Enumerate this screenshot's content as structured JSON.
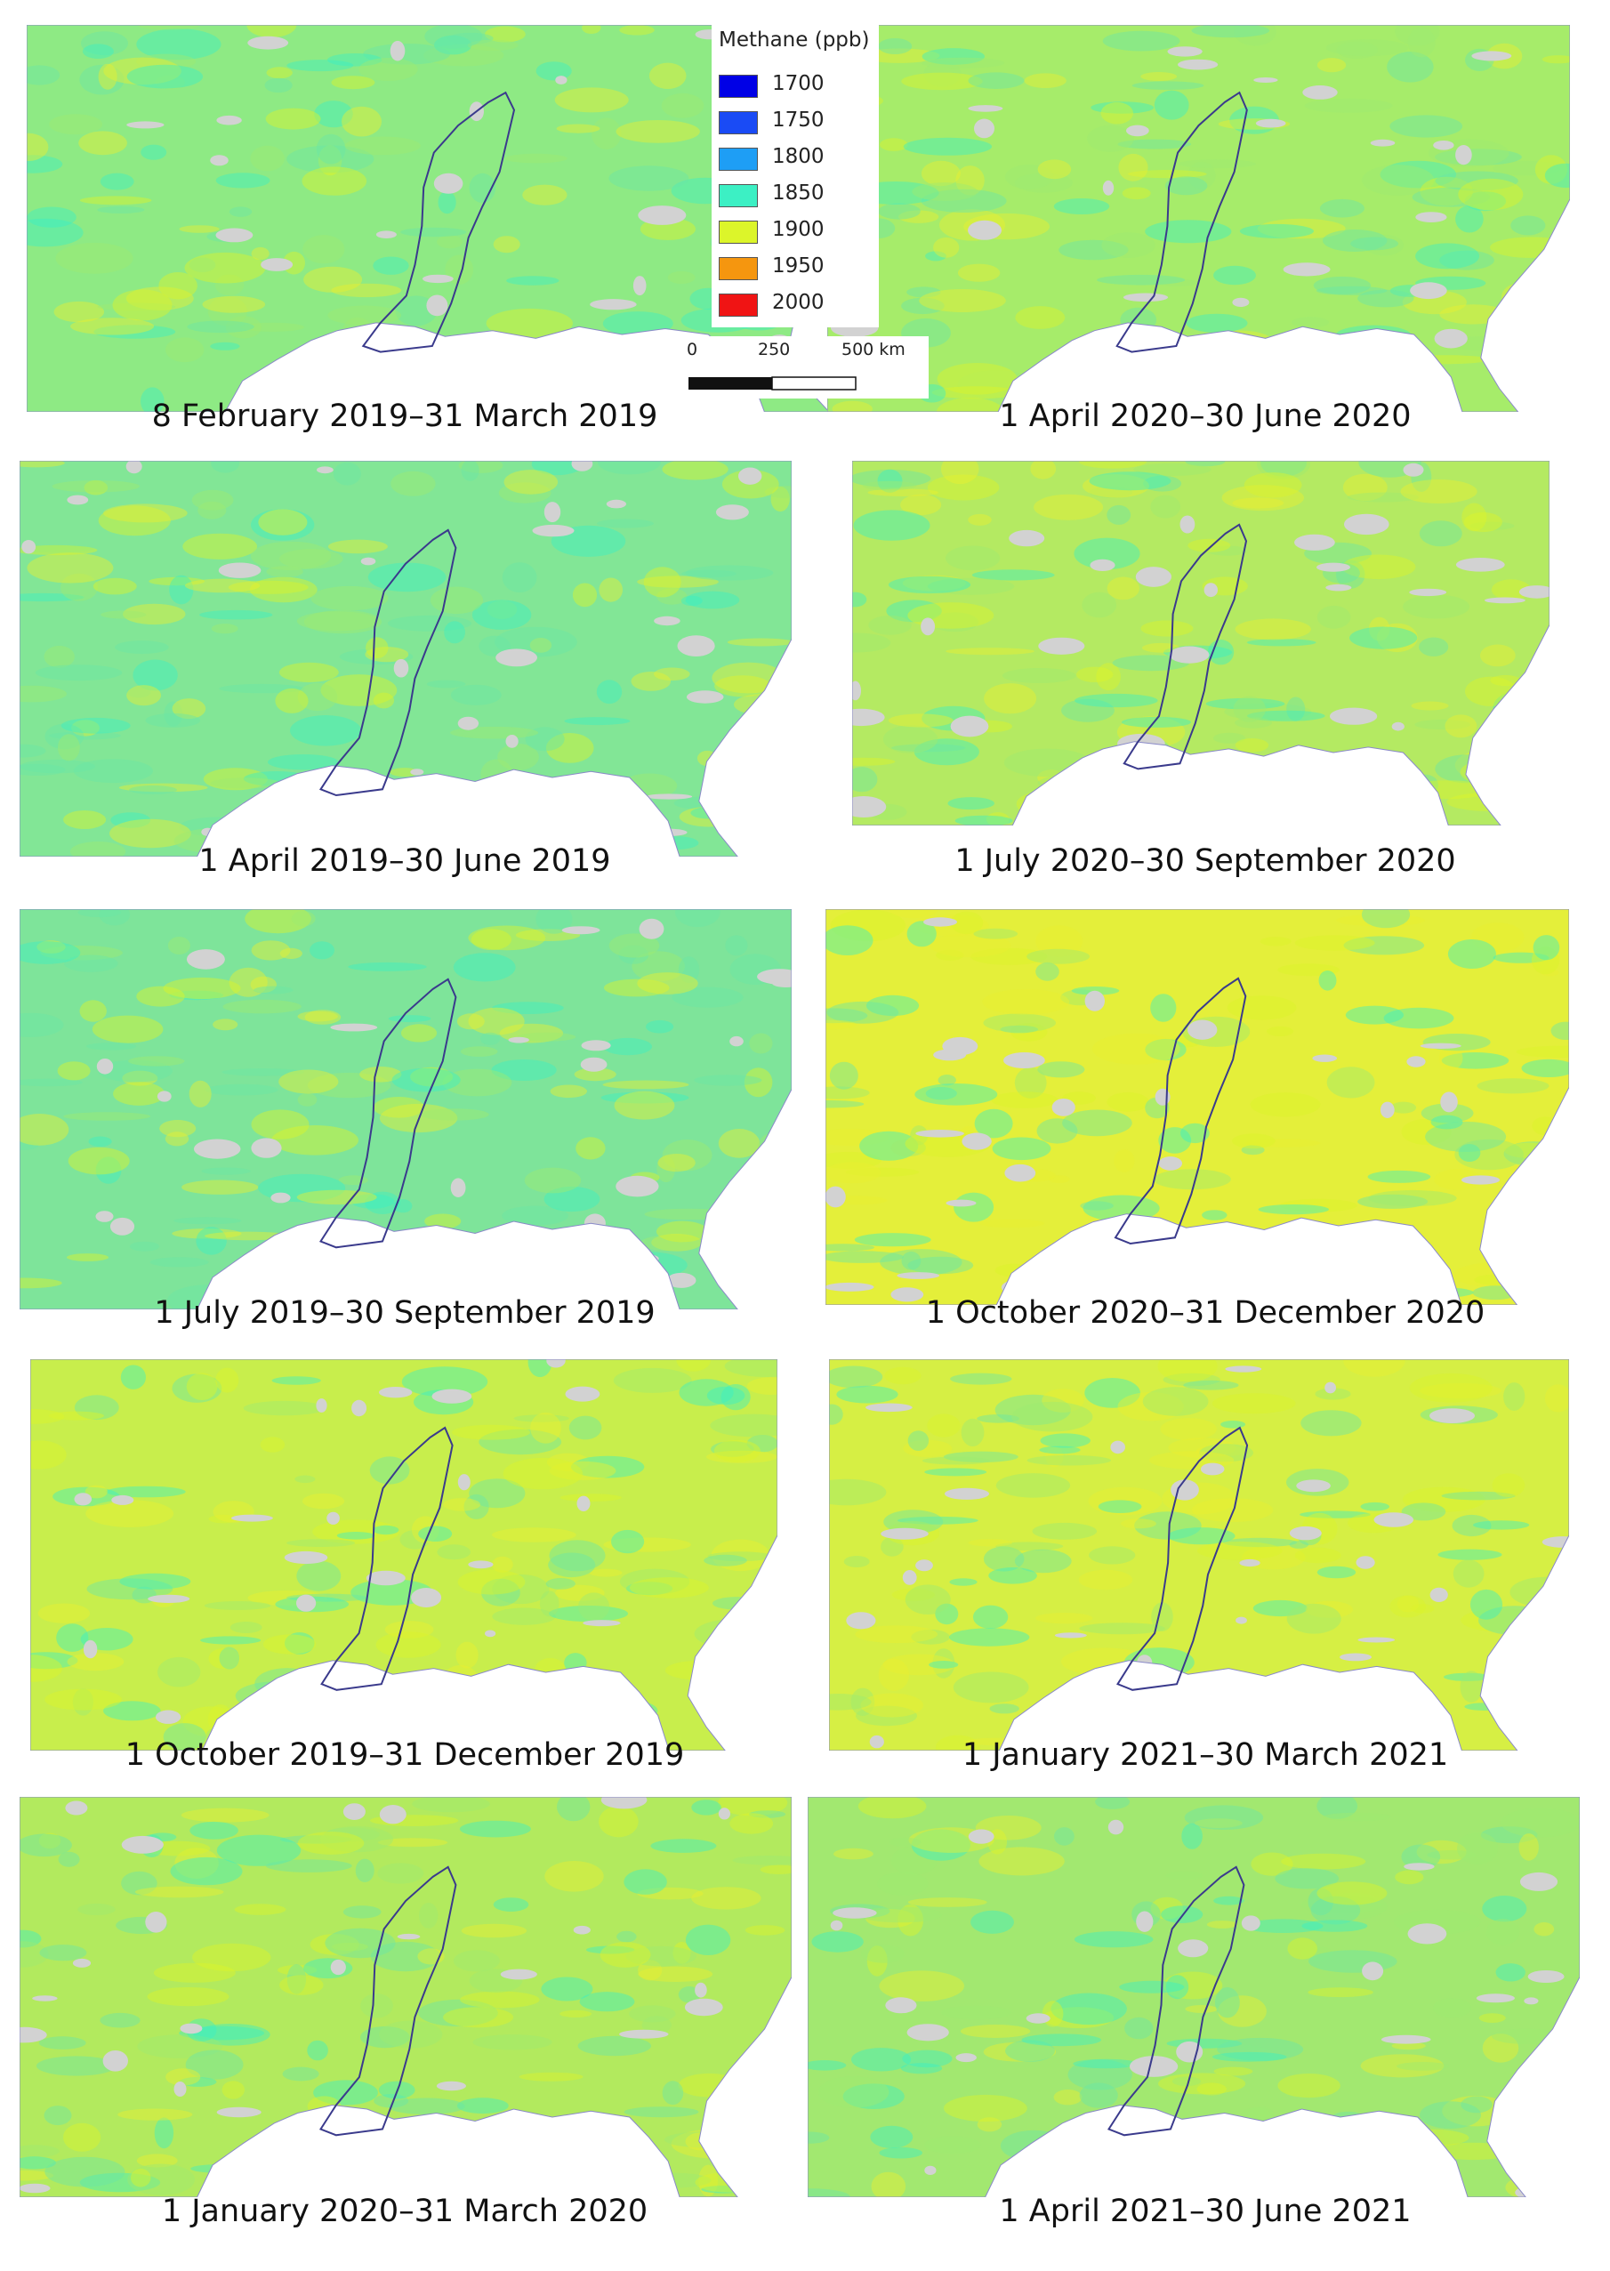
{
  "legend": {
    "title": "Methane (ppb)",
    "items": [
      {
        "value": "1700",
        "color": "#0000e6"
      },
      {
        "value": "1750",
        "color": "#1a4bf5"
      },
      {
        "value": "1800",
        "color": "#1e9ef5"
      },
      {
        "value": "1850",
        "color": "#3cf0c4"
      },
      {
        "value": "1900",
        "color": "#dcf52a"
      },
      {
        "value": "1950",
        "color": "#f5960f"
      },
      {
        "value": "2000",
        "color": "#f01414"
      }
    ]
  },
  "scale_bar": {
    "ticks": [
      "0",
      "250",
      "500 km"
    ]
  },
  "colors": {
    "no_data": "#d2d2d2",
    "study_area_outline": "#3a3a8c",
    "coastline_water": "#ffffff"
  },
  "panels": [
    {
      "caption": "8 February 2019–31 March 2019",
      "tint": "#8eea84"
    },
    {
      "caption": "1 April 2020–30 June 2020",
      "tint": "#a6ec6a"
    },
    {
      "caption": "1 April 2019–30 June 2019",
      "tint": "#82e696"
    },
    {
      "caption": "1 July 2020–30 September 2020",
      "tint": "#b4ea62"
    },
    {
      "caption": "1 July 2019–30 September 2019",
      "tint": "#7ee49a"
    },
    {
      "caption": "1 October 2020–31 December 2020",
      "tint": "#e4ef3a"
    },
    {
      "caption": "1 October 2019–31 December 2019",
      "tint": "#c8ee4c"
    },
    {
      "caption": "1 January 2021–30 March 2021",
      "tint": "#d6ef44"
    },
    {
      "caption": "1 January 2020–31 March 2020",
      "tint": "#b2ea5e"
    },
    {
      "caption": "1 April 2021–30 June 2021",
      "tint": "#a2e870"
    }
  ]
}
